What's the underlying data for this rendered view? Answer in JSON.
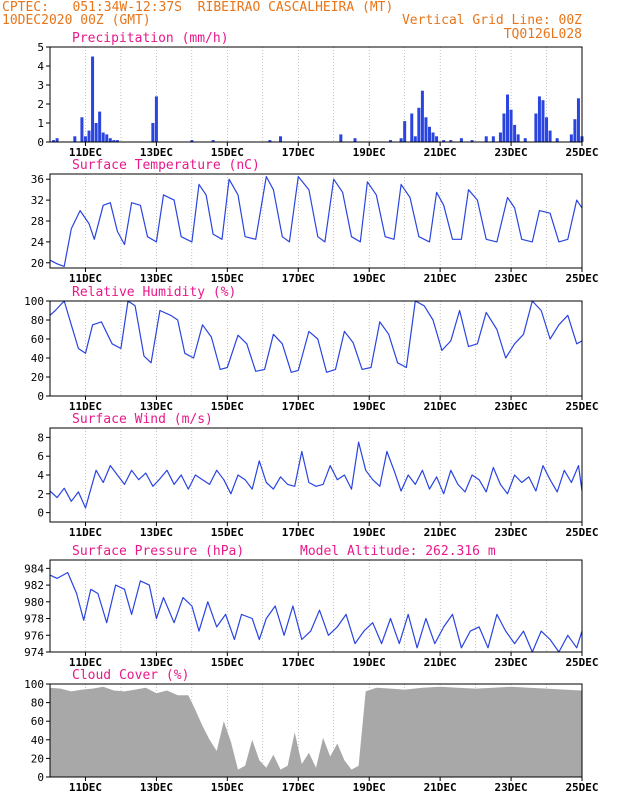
{
  "header": {
    "line1": "CPTEC:   051:34W-12:37S  RIBEIRAO CASCALHEIRA (MT)",
    "line2": "10DEC2020 00Z (GMT)",
    "grid_note": "Vertical Grid Line: 00Z",
    "run_code": "TQ0126L028"
  },
  "colors": {
    "header": "#e8751a",
    "title": "#e8198c",
    "line": "#2a44e0",
    "cloud": "#a8a8a8"
  },
  "x_axis": {
    "tick_labels": [
      "11DEC",
      "13DEC",
      "15DEC",
      "17DEC",
      "19DEC",
      "21DEC",
      "23DEC",
      "25DEC"
    ],
    "range_days": [
      10,
      25
    ]
  },
  "chart_data": [
    {
      "type": "bar",
      "title": "Precipitation (mm/h)",
      "ylim": [
        0,
        5
      ],
      "yticks": [
        0,
        1,
        2,
        3,
        4,
        5
      ],
      "x": [
        10.1,
        10.2,
        10.7,
        10.9,
        11.0,
        11.1,
        11.2,
        11.3,
        11.4,
        11.5,
        11.6,
        11.7,
        11.8,
        11.9,
        12.9,
        13.0,
        14.0,
        14.6,
        16.2,
        16.5,
        18.2,
        18.6,
        19.6,
        19.9,
        20.0,
        20.2,
        20.3,
        20.4,
        20.5,
        20.6,
        20.7,
        20.8,
        20.9,
        21.1,
        21.3,
        21.6,
        21.9,
        22.3,
        22.5,
        22.7,
        22.8,
        22.9,
        23.0,
        23.1,
        23.2,
        23.4,
        23.7,
        23.8,
        23.9,
        24.0,
        24.1,
        24.3,
        24.7,
        24.8,
        24.9,
        25.0
      ],
      "values": [
        0.1,
        0.2,
        0.3,
        1.3,
        0.3,
        0.6,
        4.5,
        1.0,
        1.6,
        0.5,
        0.4,
        0.2,
        0.1,
        0.1,
        1.0,
        2.4,
        0.1,
        0.1,
        0.1,
        0.3,
        0.4,
        0.2,
        0.1,
        0.2,
        1.1,
        1.5,
        0.3,
        1.8,
        2.7,
        1.3,
        0.8,
        0.5,
        0.3,
        0.1,
        0.1,
        0.2,
        0.1,
        0.3,
        0.3,
        0.5,
        1.5,
        2.5,
        1.7,
        0.9,
        0.4,
        0.2,
        1.5,
        2.4,
        2.2,
        1.3,
        0.6,
        0.2,
        0.4,
        1.2,
        2.3,
        0.3
      ]
    },
    {
      "type": "line",
      "title": "Surface Temperature (nC)",
      "ylim": [
        19,
        37
      ],
      "yticks": [
        20,
        24,
        28,
        32,
        36
      ],
      "x": [
        10.0,
        10.2,
        10.4,
        10.6,
        10.85,
        11.1,
        11.25,
        11.5,
        11.7,
        11.9,
        12.1,
        12.3,
        12.55,
        12.75,
        13.0,
        13.2,
        13.5,
        13.7,
        14.0,
        14.2,
        14.4,
        14.6,
        14.85,
        15.05,
        15.3,
        15.5,
        15.8,
        16.1,
        16.3,
        16.55,
        16.75,
        17.0,
        17.3,
        17.55,
        17.75,
        18.0,
        18.25,
        18.5,
        18.75,
        18.95,
        19.2,
        19.45,
        19.7,
        19.9,
        20.15,
        20.4,
        20.7,
        20.9,
        21.1,
        21.35,
        21.6,
        21.8,
        22.05,
        22.3,
        22.6,
        22.9,
        23.1,
        23.3,
        23.6,
        23.8,
        24.1,
        24.35,
        24.6,
        24.85,
        25.0
      ],
      "values": [
        20.5,
        19.8,
        19.3,
        26.5,
        30.0,
        27.5,
        24.5,
        31.0,
        31.5,
        26.0,
        23.5,
        31.5,
        31.0,
        25.0,
        24.0,
        33.0,
        32.0,
        25.0,
        24.0,
        35.0,
        33.0,
        25.5,
        24.5,
        36.0,
        33.0,
        25.0,
        24.5,
        36.5,
        34.0,
        25.0,
        24.0,
        36.5,
        34.0,
        25.0,
        24.0,
        36.0,
        33.5,
        25.0,
        24.0,
        35.5,
        33.0,
        25.0,
        24.5,
        35.0,
        32.5,
        25.0,
        24.0,
        33.5,
        31.0,
        24.5,
        24.5,
        34.0,
        32.0,
        24.5,
        24.0,
        32.5,
        30.5,
        24.5,
        24.0,
        30.0,
        29.5,
        24.0,
        24.5,
        32.0,
        30.5
      ]
    },
    {
      "type": "line",
      "title": "Relative Humidity (%)",
      "ylim": [
        0,
        100
      ],
      "yticks": [
        0,
        20,
        40,
        60,
        80,
        100
      ],
      "x": [
        10.0,
        10.15,
        10.4,
        10.6,
        10.8,
        11.0,
        11.2,
        11.45,
        11.75,
        12.0,
        12.2,
        12.4,
        12.65,
        12.85,
        13.1,
        13.4,
        13.6,
        13.8,
        14.05,
        14.3,
        14.55,
        14.8,
        15.0,
        15.3,
        15.55,
        15.8,
        16.05,
        16.3,
        16.55,
        16.8,
        17.0,
        17.3,
        17.55,
        17.8,
        18.05,
        18.3,
        18.55,
        18.8,
        19.05,
        19.3,
        19.55,
        19.8,
        20.05,
        20.3,
        20.55,
        20.8,
        21.05,
        21.3,
        21.55,
        21.8,
        22.05,
        22.3,
        22.6,
        22.85,
        23.1,
        23.35,
        23.6,
        23.85,
        24.1,
        24.35,
        24.6,
        24.85,
        25.0
      ],
      "values": [
        85,
        90,
        100,
        75,
        50,
        45,
        75,
        78,
        55,
        50,
        100,
        95,
        42,
        35,
        90,
        85,
        80,
        45,
        40,
        75,
        62,
        28,
        30,
        64,
        55,
        26,
        28,
        65,
        55,
        25,
        27,
        68,
        60,
        25,
        28,
        68,
        56,
        28,
        30,
        78,
        65,
        35,
        30,
        100,
        95,
        80,
        48,
        58,
        90,
        52,
        55,
        88,
        70,
        40,
        55,
        65,
        100,
        90,
        60,
        75,
        85,
        55,
        58
      ]
    },
    {
      "type": "line",
      "title": "Surface Wind (m/s)",
      "ylim": [
        -1,
        9
      ],
      "yticks": [
        0,
        2,
        4,
        6,
        8
      ],
      "x": [
        10.0,
        10.2,
        10.4,
        10.6,
        10.8,
        11.0,
        11.15,
        11.3,
        11.5,
        11.7,
        11.9,
        12.1,
        12.3,
        12.5,
        12.7,
        12.9,
        13.1,
        13.3,
        13.5,
        13.7,
        13.9,
        14.1,
        14.3,
        14.5,
        14.7,
        14.9,
        15.1,
        15.3,
        15.5,
        15.7,
        15.9,
        16.1,
        16.3,
        16.5,
        16.7,
        16.9,
        17.1,
        17.3,
        17.5,
        17.7,
        17.9,
        18.1,
        18.3,
        18.5,
        18.7,
        18.9,
        19.1,
        19.3,
        19.5,
        19.7,
        19.9,
        20.1,
        20.3,
        20.5,
        20.7,
        20.9,
        21.1,
        21.3,
        21.5,
        21.7,
        21.9,
        22.1,
        22.3,
        22.5,
        22.7,
        22.9,
        23.1,
        23.3,
        23.5,
        23.7,
        23.9,
        24.1,
        24.3,
        24.5,
        24.7,
        24.9,
        25.0
      ],
      "values": [
        2.3,
        1.6,
        2.6,
        1.2,
        2.2,
        0.5,
        2.5,
        4.5,
        3.2,
        5.0,
        4.0,
        3.0,
        4.5,
        3.5,
        4.2,
        2.8,
        3.6,
        4.5,
        3.0,
        4.0,
        2.5,
        4.0,
        3.5,
        3.0,
        4.5,
        3.5,
        2.0,
        4.0,
        3.5,
        2.5,
        5.5,
        3.2,
        2.5,
        3.8,
        3.0,
        2.8,
        6.5,
        3.2,
        2.8,
        3.0,
        5.0,
        3.5,
        4.0,
        2.5,
        7.5,
        4.5,
        3.5,
        2.8,
        6.5,
        4.5,
        2.3,
        4.0,
        3.0,
        4.5,
        2.5,
        3.8,
        2.0,
        4.5,
        3.0,
        2.2,
        4.0,
        3.5,
        2.2,
        4.8,
        3.0,
        2.0,
        4.0,
        3.2,
        3.8,
        2.3,
        5.0,
        3.5,
        2.2,
        4.5,
        3.2,
        5.0,
        2.3
      ]
    },
    {
      "type": "line",
      "title": "Surface Pressure (hPa)",
      "annotation": "Model Altitude: 262.316 m",
      "ylim": [
        974,
        985
      ],
      "yticks": [
        974,
        976,
        978,
        980,
        982,
        984
      ],
      "x": [
        10.0,
        10.2,
        10.5,
        10.75,
        10.95,
        11.15,
        11.35,
        11.6,
        11.85,
        12.1,
        12.3,
        12.55,
        12.8,
        13.0,
        13.2,
        13.5,
        13.75,
        14.0,
        14.2,
        14.45,
        14.7,
        14.95,
        15.2,
        15.4,
        15.7,
        15.9,
        16.1,
        16.35,
        16.6,
        16.85,
        17.1,
        17.35,
        17.6,
        17.85,
        18.1,
        18.35,
        18.6,
        18.85,
        19.1,
        19.35,
        19.6,
        19.85,
        20.1,
        20.35,
        20.6,
        20.85,
        21.1,
        21.35,
        21.6,
        21.85,
        22.1,
        22.35,
        22.6,
        22.85,
        23.1,
        23.35,
        23.6,
        23.85,
        24.1,
        24.35,
        24.6,
        24.85,
        25.0
      ],
      "values": [
        983.2,
        982.8,
        983.5,
        981.0,
        977.8,
        981.5,
        981.0,
        977.5,
        982.0,
        981.5,
        978.5,
        982.5,
        982.0,
        978.0,
        980.5,
        977.5,
        980.5,
        979.5,
        976.5,
        980.0,
        977.0,
        978.5,
        975.5,
        978.5,
        978.0,
        975.5,
        978.0,
        979.5,
        976.0,
        979.5,
        975.5,
        976.5,
        979.0,
        976.0,
        977.0,
        978.5,
        975.0,
        976.5,
        977.5,
        975.0,
        978.0,
        975.0,
        978.5,
        974.5,
        978.0,
        975.0,
        977.0,
        978.5,
        974.5,
        976.5,
        977.0,
        974.5,
        978.5,
        976.5,
        975.0,
        976.5,
        974.0,
        976.5,
        975.5,
        974.0,
        976.0,
        974.5,
        976.5
      ]
    },
    {
      "type": "area",
      "title": "Cloud Cover (%)",
      "ylim": [
        0,
        100
      ],
      "yticks": [
        0,
        20,
        40,
        60,
        80,
        100
      ],
      "x": [
        10.0,
        10.3,
        10.6,
        10.9,
        11.2,
        11.5,
        11.8,
        12.1,
        12.4,
        12.7,
        13.0,
        13.3,
        13.6,
        13.9,
        14.1,
        14.3,
        14.5,
        14.7,
        14.9,
        15.1,
        15.3,
        15.5,
        15.7,
        15.9,
        16.1,
        16.3,
        16.5,
        16.7,
        16.9,
        17.1,
        17.3,
        17.5,
        17.7,
        17.9,
        18.1,
        18.3,
        18.5,
        18.7,
        18.9,
        19.2,
        19.6,
        20.0,
        20.5,
        21.0,
        21.5,
        22.0,
        22.5,
        23.0,
        23.5,
        24.0,
        24.5,
        25.0
      ],
      "values": [
        96,
        95,
        92,
        94,
        95,
        97,
        93,
        92,
        94,
        96,
        90,
        93,
        88,
        88,
        72,
        55,
        40,
        28,
        60,
        38,
        8,
        12,
        40,
        18,
        10,
        24,
        8,
        12,
        48,
        14,
        26,
        10,
        42,
        22,
        36,
        18,
        8,
        12,
        92,
        96,
        95,
        94,
        96,
        97,
        96,
        95,
        96,
        97,
        96,
        95,
        94,
        93
      ]
    }
  ]
}
